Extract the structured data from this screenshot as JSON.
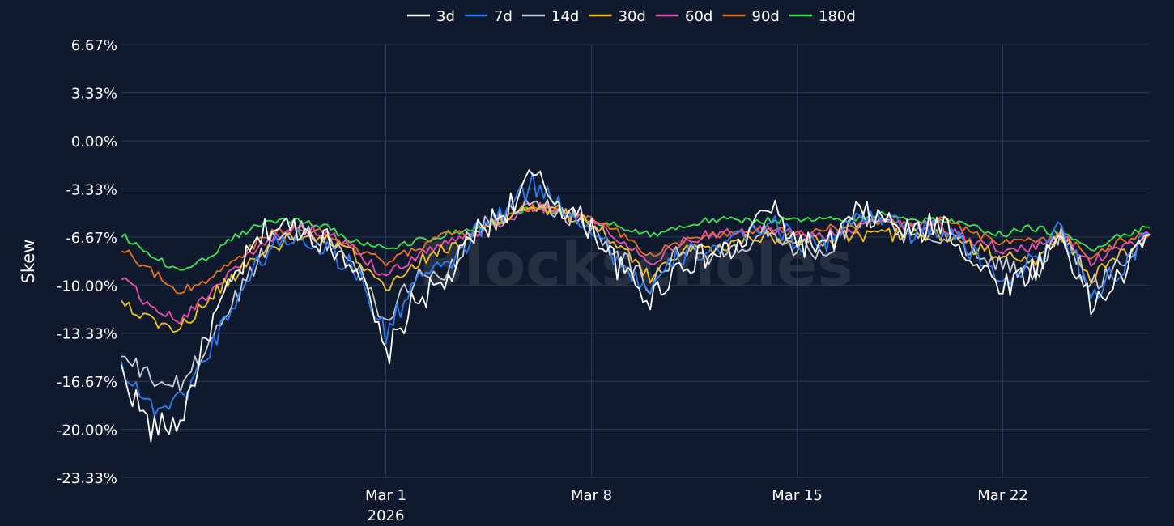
{
  "watermark": "Blockscholes",
  "chart_data": {
    "type": "line",
    "title": "",
    "xlabel": "",
    "ylabel": "Skew",
    "ylim": [
      -23.33,
      6.67
    ],
    "yticks": [
      "6.67%",
      "3.33%",
      "0.00%",
      "-3.33%",
      "-6.67%",
      "-10.00%",
      "-13.33%",
      "-16.67%",
      "-20.00%",
      "-23.33%"
    ],
    "ytick_values": [
      6.67,
      3.33,
      0.0,
      -3.33,
      -6.67,
      -10.0,
      -13.33,
      -16.67,
      -20.0,
      -23.33
    ],
    "xlim": [
      "2026-02-20",
      "2026-03-27"
    ],
    "xticks": [
      {
        "date": "2026-03-01",
        "label": "Mar 1",
        "sublabel": "2026"
      },
      {
        "date": "2026-03-08",
        "label": "Mar 8",
        "sublabel": ""
      },
      {
        "date": "2026-03-15",
        "label": "Mar 15",
        "sublabel": ""
      },
      {
        "date": "2026-03-22",
        "label": "Mar 22",
        "sublabel": ""
      }
    ],
    "grid": true,
    "legend_position": "top-center",
    "x": [
      "2026-02-20",
      "2026-02-21",
      "2026-02-22",
      "2026-02-23",
      "2026-02-24",
      "2026-02-25",
      "2026-02-26",
      "2026-02-27",
      "2026-02-28",
      "2026-03-01",
      "2026-03-02",
      "2026-03-03",
      "2026-03-04",
      "2026-03-05",
      "2026-03-06",
      "2026-03-07",
      "2026-03-08",
      "2026-03-09",
      "2026-03-10",
      "2026-03-11",
      "2026-03-12",
      "2026-03-13",
      "2026-03-14",
      "2026-03-15",
      "2026-03-16",
      "2026-03-17",
      "2026-03-18",
      "2026-03-19",
      "2026-03-20",
      "2026-03-21",
      "2026-03-22",
      "2026-03-23",
      "2026-03-24",
      "2026-03-25",
      "2026-03-26",
      "2026-03-27"
    ],
    "series": [
      {
        "name": "3d",
        "color": "#ffffff",
        "values": [
          -16.0,
          -20.0,
          -19.5,
          -13.0,
          -9.0,
          -6.0,
          -6.0,
          -7.0,
          -8.5,
          -15.0,
          -11.0,
          -10.0,
          -6.5,
          -5.0,
          -2.5,
          -4.5,
          -6.0,
          -9.0,
          -11.0,
          -8.5,
          -8.0,
          -7.5,
          -4.5,
          -7.0,
          -7.5,
          -5.0,
          -5.5,
          -6.5,
          -5.5,
          -8.5,
          -10.0,
          -9.0,
          -6.5,
          -11.5,
          -9.5,
          -6.5
        ]
      },
      {
        "name": "7d",
        "color": "#2f7ef5",
        "values": [
          -15.5,
          -18.5,
          -18.0,
          -14.5,
          -10.5,
          -7.5,
          -6.5,
          -7.5,
          -9.0,
          -13.5,
          -9.5,
          -9.0,
          -6.5,
          -5.0,
          -3.0,
          -4.5,
          -6.0,
          -8.5,
          -10.5,
          -8.0,
          -7.5,
          -7.0,
          -5.5,
          -7.0,
          -7.0,
          -5.5,
          -5.0,
          -6.5,
          -6.0,
          -8.0,
          -9.5,
          -8.5,
          -6.0,
          -10.5,
          -9.0,
          -6.5
        ]
      },
      {
        "name": "14d",
        "color": "#c8ccd4",
        "values": [
          -15.0,
          -16.5,
          -17.0,
          -14.0,
          -10.5,
          -7.0,
          -6.0,
          -7.0,
          -8.5,
          -12.5,
          -9.5,
          -9.5,
          -6.0,
          -5.5,
          -4.0,
          -5.0,
          -6.0,
          -8.0,
          -10.0,
          -7.5,
          -8.0,
          -7.5,
          -6.0,
          -7.5,
          -7.5,
          -5.5,
          -5.5,
          -7.0,
          -6.5,
          -7.5,
          -8.5,
          -9.5,
          -6.5,
          -10.0,
          -8.5,
          -6.5
        ]
      },
      {
        "name": "30d",
        "color": "#f2c11d",
        "values": [
          -11.0,
          -12.5,
          -13.0,
          -11.0,
          -9.0,
          -7.5,
          -6.5,
          -7.0,
          -8.0,
          -10.5,
          -8.5,
          -7.5,
          -6.5,
          -5.5,
          -4.5,
          -5.0,
          -5.5,
          -7.5,
          -9.5,
          -7.5,
          -7.5,
          -7.0,
          -6.5,
          -7.0,
          -7.0,
          -6.5,
          -6.5,
          -6.5,
          -6.5,
          -7.5,
          -8.0,
          -8.5,
          -6.5,
          -9.5,
          -8.0,
          -6.5
        ]
      },
      {
        "name": "60d",
        "color": "#ee4fb0",
        "values": [
          -9.5,
          -11.5,
          -12.5,
          -10.5,
          -8.5,
          -7.0,
          -6.0,
          -6.5,
          -7.5,
          -9.5,
          -8.0,
          -7.0,
          -6.5,
          -5.5,
          -4.5,
          -5.0,
          -5.5,
          -7.0,
          -8.5,
          -7.0,
          -6.5,
          -6.5,
          -6.0,
          -6.5,
          -6.5,
          -6.0,
          -5.5,
          -6.0,
          -6.0,
          -7.0,
          -7.5,
          -7.5,
          -6.5,
          -8.5,
          -7.5,
          -6.5
        ]
      },
      {
        "name": "90d",
        "color": "#e8731e",
        "values": [
          -7.5,
          -9.0,
          -10.5,
          -9.5,
          -8.0,
          -6.5,
          -6.0,
          -6.5,
          -7.5,
          -8.5,
          -7.5,
          -6.5,
          -6.5,
          -5.5,
          -4.5,
          -5.0,
          -5.5,
          -6.5,
          -8.0,
          -7.0,
          -6.5,
          -6.5,
          -6.0,
          -6.5,
          -6.0,
          -6.0,
          -5.5,
          -6.0,
          -5.5,
          -6.5,
          -7.0,
          -7.0,
          -6.5,
          -8.0,
          -7.0,
          -6.5
        ]
      },
      {
        "name": "180d",
        "color": "#3ee552",
        "values": [
          -6.5,
          -8.0,
          -9.0,
          -8.0,
          -6.5,
          -5.5,
          -5.5,
          -6.0,
          -7.0,
          -7.5,
          -7.0,
          -6.5,
          -6.0,
          -5.5,
          -4.5,
          -5.0,
          -5.5,
          -6.0,
          -6.5,
          -6.0,
          -5.5,
          -5.5,
          -5.5,
          -5.5,
          -5.5,
          -5.5,
          -5.0,
          -5.5,
          -5.5,
          -6.0,
          -6.5,
          -6.0,
          -6.5,
          -7.5,
          -6.5,
          -6.0
        ]
      }
    ]
  }
}
